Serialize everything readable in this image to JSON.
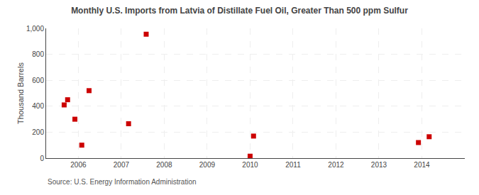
{
  "chart_data": {
    "type": "scatter",
    "title": "Monthly U.S. Imports from Latvia of Distillate Fuel Oil, Greater Than 500 ppm Sulfur",
    "y_label": "Thousand Barrels",
    "annotations": [
      "Source: U.S. Energy Information Administration"
    ],
    "x": [
      2005.67,
      2005.75,
      2005.92,
      2006.08,
      2006.25,
      2007.17,
      2007.58,
      2010.0,
      2010.08,
      2013.92,
      2014.17
    ],
    "values": [
      410,
      450,
      300,
      100,
      520,
      265,
      955,
      15,
      170,
      120,
      165
    ],
    "color": "#cc0000",
    "marker": "square",
    "xlim": [
      2005.25,
      2015.0
    ],
    "xticks": [
      2006,
      2007,
      2008,
      2009,
      2010,
      2011,
      2012,
      2013,
      2014
    ],
    "ylim": [
      0,
      1000
    ],
    "yticks": [
      0,
      200,
      400,
      600,
      800,
      {
        "value": 1000,
        "label": "1,000"
      }
    ],
    "grid": true
  }
}
